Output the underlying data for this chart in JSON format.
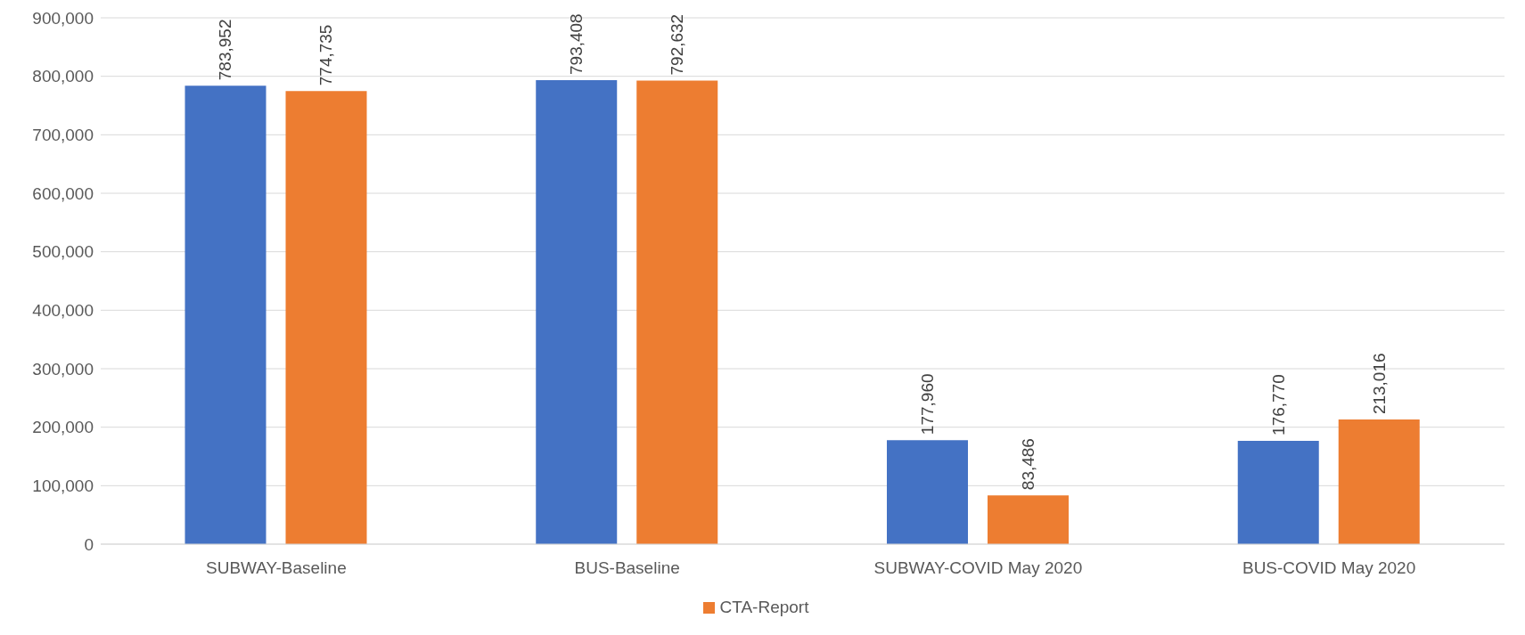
{
  "chart_data": {
    "type": "bar",
    "categories": [
      "SUBWAY-Baseline",
      "BUS-Baseline",
      "SUBWAY-COVID May 2020",
      "BUS-COVID May 2020"
    ],
    "series": [
      {
        "color": "#4472c4",
        "values": [
          783952,
          793408,
          177960,
          176770
        ],
        "value_labels": [
          "783,952",
          "793,408",
          "177,960",
          "176,770"
        ]
      },
      {
        "name": "CTA-Report",
        "color": "#ed7d31",
        "values": [
          774735,
          792632,
          83486,
          213016
        ],
        "value_labels": [
          "774,735",
          "792,632",
          "83,486",
          "213,016"
        ]
      }
    ],
    "ylim": [
      0,
      900000
    ],
    "yticks": [
      0,
      {
        "value": 100000,
        "label": "100,000"
      },
      {
        "value": 200000,
        "label": "200,000"
      },
      {
        "value": 300000,
        "label": "300,000"
      },
      {
        "value": 400000,
        "label": "400,000"
      },
      {
        "value": 500000,
        "label": "500,000"
      },
      {
        "value": 600000,
        "label": "600,000"
      },
      {
        "value": 700000,
        "label": "700,000"
      },
      {
        "value": 800000,
        "label": "800,000"
      },
      {
        "value": 900000,
        "label": "900,000"
      }
    ],
    "grid": "y",
    "legend": "bottom"
  }
}
